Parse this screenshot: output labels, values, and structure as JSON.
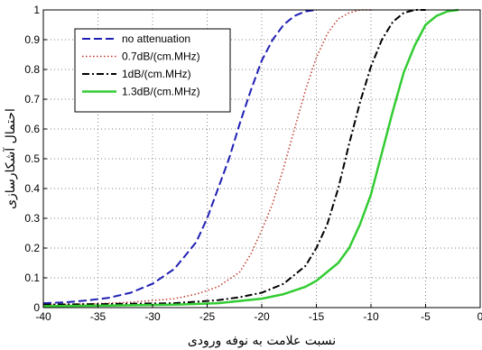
{
  "chart_data": {
    "type": "line",
    "xlabel": "نسبت علامت به نوفه ورودی",
    "ylabel": "احتمال آشکارسازی",
    "xlim": [
      -40,
      0
    ],
    "ylim": [
      0,
      1
    ],
    "xticks": [
      "-40",
      "-35",
      "-30",
      "-25",
      "-20",
      "-15",
      "-10",
      "-5",
      "0"
    ],
    "yticks": [
      "0",
      "0.1",
      "0.2",
      "0.3",
      "0.4",
      "0.5",
      "0.6",
      "0.7",
      "0.8",
      "0.9",
      "1"
    ],
    "grid": true,
    "legend_position": "top-left",
    "series": [
      {
        "name": "no attenuation",
        "color": "#1f1fb4",
        "dash": "dashed",
        "points": [
          [
            -40,
            0.015
          ],
          [
            -38,
            0.018
          ],
          [
            -36,
            0.024
          ],
          [
            -34,
            0.033
          ],
          [
            -32,
            0.05
          ],
          [
            -30,
            0.08
          ],
          [
            -28,
            0.13
          ],
          [
            -26,
            0.22
          ],
          [
            -25,
            0.3
          ],
          [
            -24,
            0.4
          ],
          [
            -23,
            0.5
          ],
          [
            -22,
            0.62
          ],
          [
            -21,
            0.73
          ],
          [
            -20,
            0.83
          ],
          [
            -19,
            0.9
          ],
          [
            -18,
            0.95
          ],
          [
            -17,
            0.98
          ],
          [
            -16,
            0.995
          ],
          [
            -15,
            1.0
          ]
        ]
      },
      {
        "name": "0.7dB/(cm.MHz)",
        "color": "#c0392b",
        "dash": "dotted",
        "points": [
          [
            -40,
            0.01
          ],
          [
            -36,
            0.012
          ],
          [
            -32,
            0.018
          ],
          [
            -28,
            0.03
          ],
          [
            -26,
            0.045
          ],
          [
            -24,
            0.07
          ],
          [
            -22,
            0.12
          ],
          [
            -21,
            0.18
          ],
          [
            -20,
            0.26
          ],
          [
            -19,
            0.35
          ],
          [
            -18,
            0.47
          ],
          [
            -17,
            0.6
          ],
          [
            -16,
            0.73
          ],
          [
            -15,
            0.84
          ],
          [
            -14,
            0.92
          ],
          [
            -13,
            0.97
          ],
          [
            -12,
            0.99
          ],
          [
            -11,
            1.0
          ],
          [
            -10,
            1.0
          ]
        ]
      },
      {
        "name": "1dB/(cm.MHz)",
        "color": "#000000",
        "dash": "dashdot",
        "points": [
          [
            -40,
            0.01
          ],
          [
            -34,
            0.012
          ],
          [
            -28,
            0.015
          ],
          [
            -24,
            0.025
          ],
          [
            -22,
            0.035
          ],
          [
            -20,
            0.05
          ],
          [
            -18,
            0.08
          ],
          [
            -16,
            0.14
          ],
          [
            -15,
            0.2
          ],
          [
            -14,
            0.28
          ],
          [
            -13,
            0.4
          ],
          [
            -12,
            0.55
          ],
          [
            -11,
            0.69
          ],
          [
            -10,
            0.81
          ],
          [
            -9,
            0.9
          ],
          [
            -8,
            0.96
          ],
          [
            -7,
            0.99
          ],
          [
            -6,
            1.0
          ],
          [
            -5,
            1.0
          ]
        ]
      },
      {
        "name": "1.3dB/(cm.MHz)",
        "color": "#33cc33",
        "dash": "solid",
        "points": [
          [
            -40,
            0.005
          ],
          [
            -34,
            0.007
          ],
          [
            -28,
            0.01
          ],
          [
            -24,
            0.015
          ],
          [
            -20,
            0.03
          ],
          [
            -18,
            0.045
          ],
          [
            -16,
            0.07
          ],
          [
            -15,
            0.09
          ],
          [
            -14,
            0.12
          ],
          [
            -13,
            0.15
          ],
          [
            -12,
            0.2
          ],
          [
            -11,
            0.28
          ],
          [
            -10,
            0.38
          ],
          [
            -9,
            0.52
          ],
          [
            -8,
            0.66
          ],
          [
            -7,
            0.79
          ],
          [
            -6,
            0.88
          ],
          [
            -5,
            0.95
          ],
          [
            -4,
            0.98
          ],
          [
            -3,
            0.995
          ],
          [
            -2,
            1.0
          ]
        ]
      }
    ]
  }
}
